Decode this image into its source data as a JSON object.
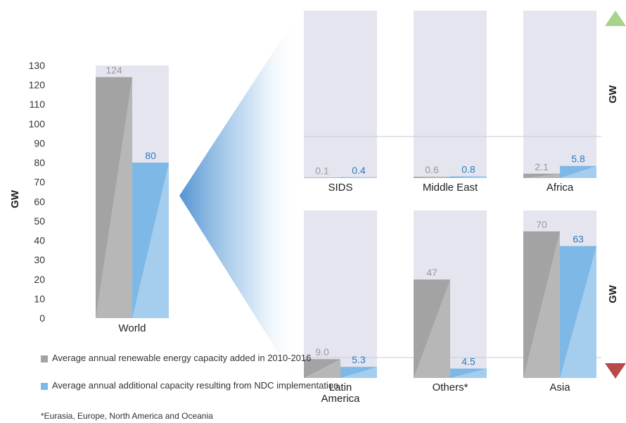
{
  "colors": {
    "baseline": "#a3a3a3",
    "baseline_light": "#b7b7b7",
    "ndc": "#7eb8e6",
    "ndc_light": "#a5cdee",
    "panel_bg": "#e4e5ef",
    "baseline_label": "#9a9a9a",
    "ndc_label": "#2a7cbd",
    "up_arrow": "#a9d38c",
    "down_arrow": "#b84a4a"
  },
  "legend": {
    "baseline": "Average annual renewable energy capacity added in 2010-2016",
    "ndc": "Average annual additional capacity resulting from NDC implementation"
  },
  "footnote": "*Eurasia, Europe, North America and Oceania",
  "chart_data": [
    {
      "type": "bar",
      "ylabel": "GW",
      "ylim": [
        0,
        130
      ],
      "yticks": [
        "0",
        "10",
        "20",
        "30",
        "40",
        "50",
        "60",
        "70",
        "80",
        "90",
        "100",
        "110",
        "120",
        "130"
      ],
      "categories": [
        "World"
      ],
      "series": [
        {
          "key": "baseline",
          "values": [
            124
          ],
          "labels": [
            "124"
          ]
        },
        {
          "key": "ndc",
          "values": [
            80
          ],
          "labels": [
            "80"
          ]
        }
      ]
    },
    {
      "type": "bar",
      "ylabel": "GW",
      "categories": [
        "SIDS",
        "Middle East",
        "Africa"
      ],
      "series": [
        {
          "key": "baseline",
          "values": [
            0.1,
            0.6,
            2.1
          ],
          "labels": [
            "0.1",
            "0.6",
            "2.1"
          ]
        },
        {
          "key": "ndc",
          "values": [
            0.4,
            0.8,
            5.8
          ],
          "labels": [
            "0.4",
            "0.8",
            "5.8"
          ]
        }
      ]
    },
    {
      "type": "bar",
      "ylabel": "GW",
      "categories": [
        "Latin America",
        "Others*",
        "Asia"
      ],
      "series": [
        {
          "key": "baseline",
          "values": [
            9.0,
            47,
            70
          ],
          "labels": [
            "9.0",
            "47",
            "70"
          ]
        },
        {
          "key": "ndc",
          "values": [
            5.3,
            4.5,
            63
          ],
          "labels": [
            "5.3",
            "4.5",
            "63"
          ]
        }
      ]
    }
  ]
}
